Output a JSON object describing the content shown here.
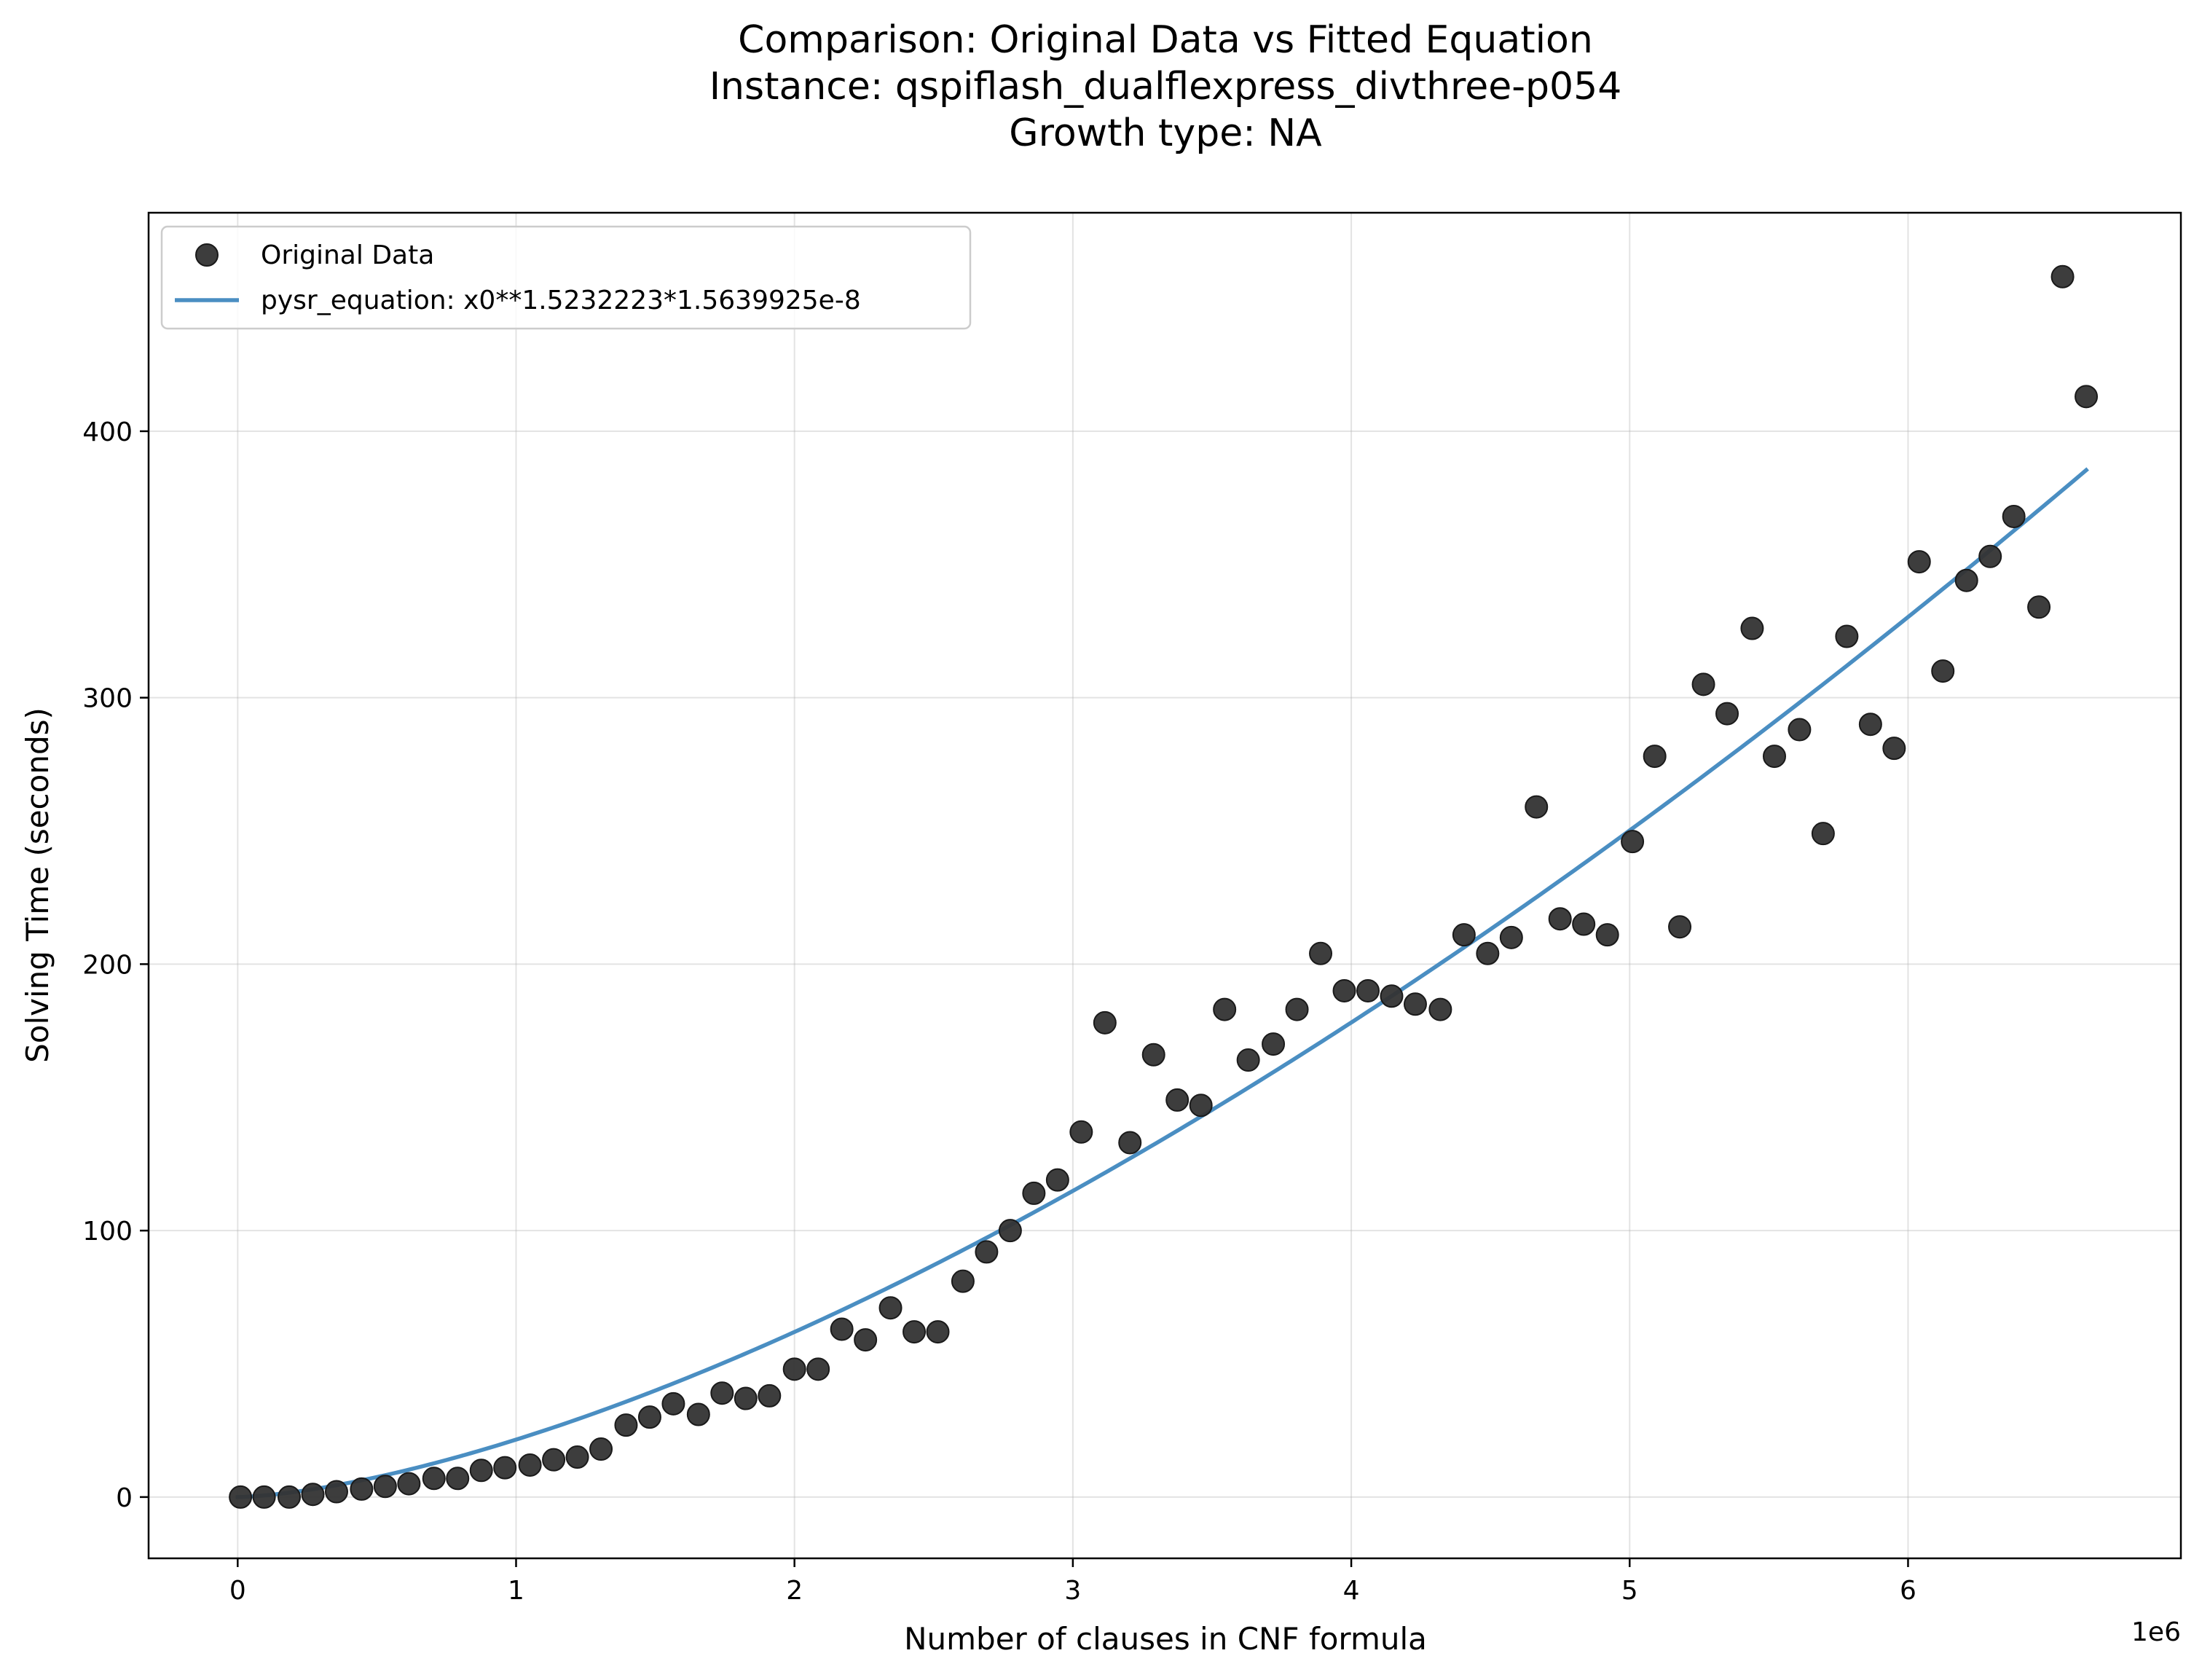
{
  "chart_data": {
    "type": "scatter",
    "title_lines": [
      "Comparison: Original Data vs Fitted Equation",
      "Instance: qspiflash_dualflexpress_divthree-p054",
      "Growth type: NA"
    ],
    "xlabel": "Number of clauses in CNF formula",
    "ylabel": "Solving Time (seconds)",
    "x_offset_text": "1e6",
    "xlim": [
      -320000,
      6980000
    ],
    "ylim": [
      -23,
      482
    ],
    "x_ticks": [
      0,
      1000000,
      2000000,
      3000000,
      4000000,
      5000000,
      6000000
    ],
    "x_tick_labels": [
      "0",
      "1",
      "2",
      "3",
      "4",
      "5",
      "6"
    ],
    "y_ticks": [
      0,
      100,
      200,
      300,
      400
    ],
    "y_tick_labels": [
      "0",
      "100",
      "200",
      "300",
      "400"
    ],
    "grid": true,
    "legend_position": "top-left",
    "colors": {
      "scatter": "#333333",
      "line": "#4a8ec2"
    },
    "series": [
      {
        "name": "Original Data",
        "kind": "scatter",
        "x": [
          10000,
          95000,
          185000,
          270000,
          355000,
          445000,
          530000,
          615000,
          705000,
          790000,
          875000,
          960000,
          1050000,
          1135000,
          1220000,
          1305000,
          1395000,
          1480000,
          1565000,
          1655000,
          1740000,
          1825000,
          1910000,
          2000000,
          2085000,
          2170000,
          2255000,
          2345000,
          2430000,
          2515000,
          2605000,
          2690000,
          2775000,
          2860000,
          2945000,
          3030000,
          3115000,
          3205000,
          3290000,
          3375000,
          3460000,
          3545000,
          3630000,
          3720000,
          3805000,
          3890000,
          3975000,
          4060000,
          4145000,
          4230000,
          4320000,
          4405000,
          4490000,
          4575000,
          4665000,
          4750000,
          4835000,
          4920000,
          5010000,
          5090000,
          5180000,
          5265000,
          5350000,
          5440000,
          5520000,
          5610000,
          5695000,
          5780000,
          5865000,
          5950000,
          6040000,
          6125000,
          6210000,
          6295000,
          6380000,
          6470000,
          6555000,
          6640000
        ],
        "y": [
          0,
          0,
          0,
          1,
          2,
          3,
          4,
          5,
          7,
          7,
          10,
          11,
          12,
          14,
          15,
          18,
          27,
          30,
          35,
          31,
          39,
          37,
          38,
          48,
          48,
          63,
          59,
          71,
          62,
          62,
          81,
          92,
          100,
          114,
          119,
          137,
          178,
          133,
          166,
          149,
          147,
          183,
          164,
          170,
          183,
          204,
          190,
          190,
          188,
          185,
          183,
          211,
          204,
          210,
          259,
          217,
          215,
          211,
          246,
          278,
          214,
          305,
          294,
          326,
          278,
          288,
          249,
          323,
          290,
          281,
          351,
          310,
          344,
          353,
          368,
          334,
          458,
          413
        ]
      },
      {
        "name": "pysr_equation: x0**1.5232223*1.5639925e-8",
        "kind": "line",
        "equation": {
          "exponent": 1.5232223,
          "coefficient": 1.5639925e-08
        },
        "x_range": [
          0,
          6640000
        ]
      }
    ]
  }
}
